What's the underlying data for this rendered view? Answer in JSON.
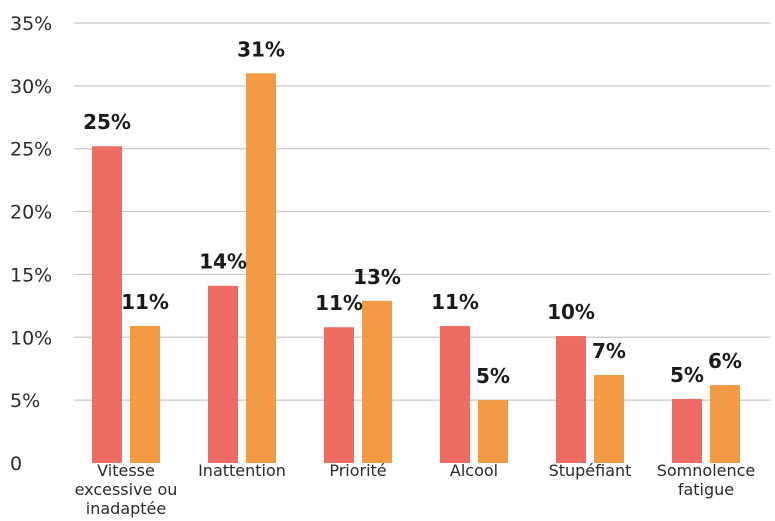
{
  "chart_data": {
    "type": "bar",
    "title": "",
    "xlabel": "",
    "ylabel": "",
    "ylim": [
      0,
      35
    ],
    "grid": true,
    "legend": "none",
    "y_ticks": [
      {
        "value": 0,
        "label": "0"
      },
      {
        "value": 5,
        "label": "5%"
      },
      {
        "value": 10,
        "label": "10%"
      },
      {
        "value": 15,
        "label": "15%"
      },
      {
        "value": 20,
        "label": "20%"
      },
      {
        "value": 25,
        "label": "25%"
      },
      {
        "value": 30,
        "label": "30%"
      },
      {
        "value": 35,
        "label": "35%"
      }
    ],
    "categories": [
      [
        "Vitesse",
        "excessive ou",
        "inadaptée"
      ],
      [
        "Inattention"
      ],
      [
        "Priorité"
      ],
      [
        "Alcool"
      ],
      [
        "Stupéfiant"
      ],
      [
        "Somnolence",
        "fatigue"
      ]
    ],
    "series": [
      {
        "color": "#ee6c63",
        "values": [
          25.2,
          14.1,
          10.8,
          10.9,
          10.1,
          5.1
        ],
        "labels": [
          "25%",
          "14%",
          "11%",
          "11%",
          "10%",
          "5%"
        ]
      },
      {
        "color": "#f39a45",
        "values": [
          10.9,
          31.0,
          12.9,
          5.0,
          7.0,
          6.2
        ],
        "labels": [
          "11%",
          "31%",
          "13%",
          "5%",
          "7%",
          "6%"
        ]
      }
    ]
  }
}
